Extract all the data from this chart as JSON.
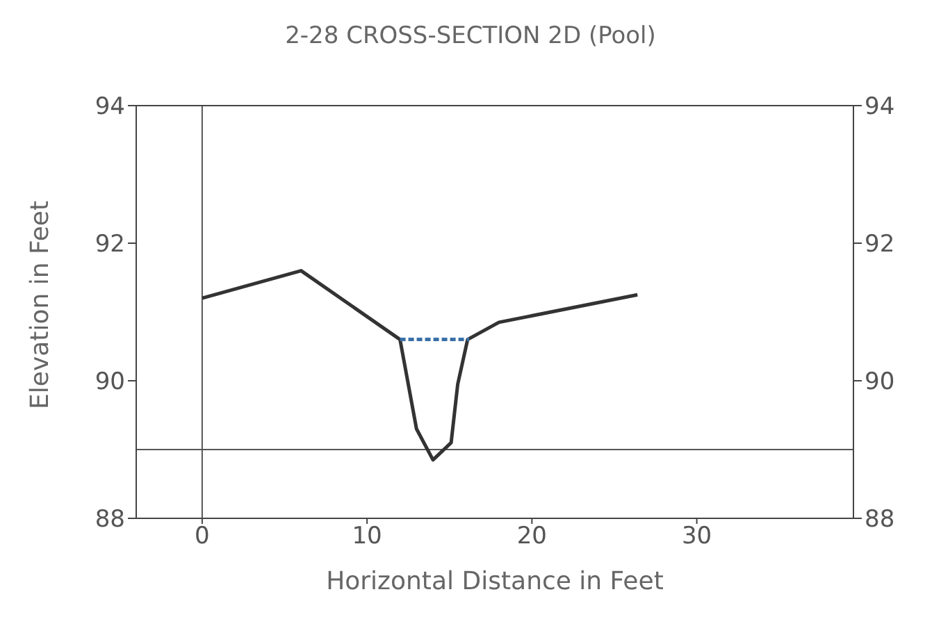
{
  "chart_data": {
    "type": "line",
    "title": "2-28 CROSS-SECTION 2D (Pool)",
    "xlabel": "Horizontal Distance in Feet",
    "ylabel": "Elevation in Feet",
    "xlim": [
      -4,
      39.5
    ],
    "xticks": [
      0,
      10,
      20,
      30
    ],
    "ylim": [
      88,
      94
    ],
    "yticks": [
      88,
      90,
      92,
      94
    ],
    "y2lim": [
      88,
      94
    ],
    "y2ticks": [
      88,
      90,
      92,
      94
    ],
    "marker": "none",
    "series": [
      {
        "color": "#333333",
        "x": [
          0,
          6,
          12,
          13,
          14,
          15.1,
          15.5,
          16.1,
          18,
          26.4
        ],
        "values": [
          91.2,
          91.6,
          90.6,
          89.3,
          88.85,
          89.1,
          89.95,
          90.6,
          90.85,
          91.25
        ],
        "line_style": "solid"
      },
      {
        "color": "#3a6fa8",
        "x": [
          12,
          16.2
        ],
        "values": [
          90.6,
          90.6
        ],
        "line_style": "dashed"
      }
    ],
    "ref_lines": [
      {
        "axis": "x",
        "value": 0,
        "color": "#555555"
      },
      {
        "axis": "y",
        "value": 89,
        "color": "#555555"
      }
    ]
  }
}
